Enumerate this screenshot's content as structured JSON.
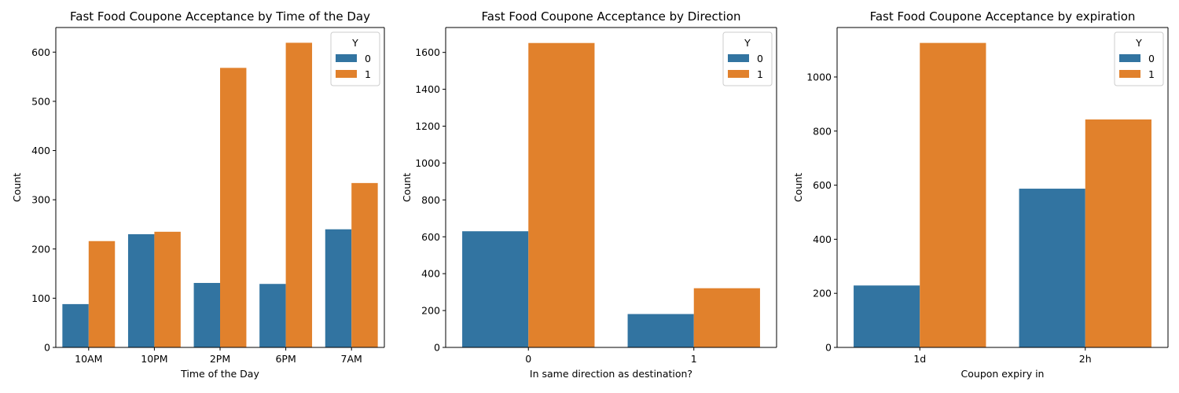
{
  "chart_data": [
    {
      "type": "bar",
      "title": "Fast Food Coupone Acceptance by Time of the Day",
      "xlabel": "Time of the Day",
      "ylabel": "Count",
      "categories": [
        "10AM",
        "10PM",
        "2PM",
        "6PM",
        "7AM"
      ],
      "series": [
        {
          "name": "0",
          "color": "#3274a1",
          "values": [
            88,
            230,
            131,
            129,
            240
          ]
        },
        {
          "name": "1",
          "color": "#e1812c",
          "values": [
            216,
            235,
            568,
            619,
            334
          ]
        }
      ],
      "ylim": [
        0,
        650
      ],
      "yticks": [
        0,
        100,
        200,
        300,
        400,
        500,
        600
      ],
      "legend": {
        "title": "Y",
        "placement": "top-right"
      },
      "grid": false
    },
    {
      "type": "bar",
      "title": "Fast Food Coupone Acceptance by Direction",
      "xlabel": "In same direction as destination?",
      "ylabel": "Count",
      "categories": [
        "0",
        "1"
      ],
      "series": [
        {
          "name": "0",
          "color": "#3274a1",
          "values": [
            630,
            181
          ]
        },
        {
          "name": "1",
          "color": "#e1812c",
          "values": [
            1651,
            321
          ]
        }
      ],
      "ylim": [
        0,
        1735
      ],
      "yticks": [
        0,
        200,
        400,
        600,
        800,
        1000,
        1200,
        1400,
        1600
      ],
      "legend": {
        "title": "Y",
        "placement": "top-right"
      },
      "grid": false
    },
    {
      "type": "bar",
      "title": "Fast Food Coupone Acceptance by expiration",
      "xlabel": "Coupon expiry in",
      "ylabel": "Count",
      "categories": [
        "1d",
        "2h"
      ],
      "series": [
        {
          "name": "0",
          "color": "#3274a1",
          "values": [
            229,
            587
          ]
        },
        {
          "name": "1",
          "color": "#e1812c",
          "values": [
            1126,
            843
          ]
        }
      ],
      "ylim": [
        0,
        1183
      ],
      "yticks": [
        0,
        200,
        400,
        600,
        800,
        1000
      ],
      "legend": {
        "title": "Y",
        "placement": "top-right"
      },
      "grid": false
    }
  ]
}
